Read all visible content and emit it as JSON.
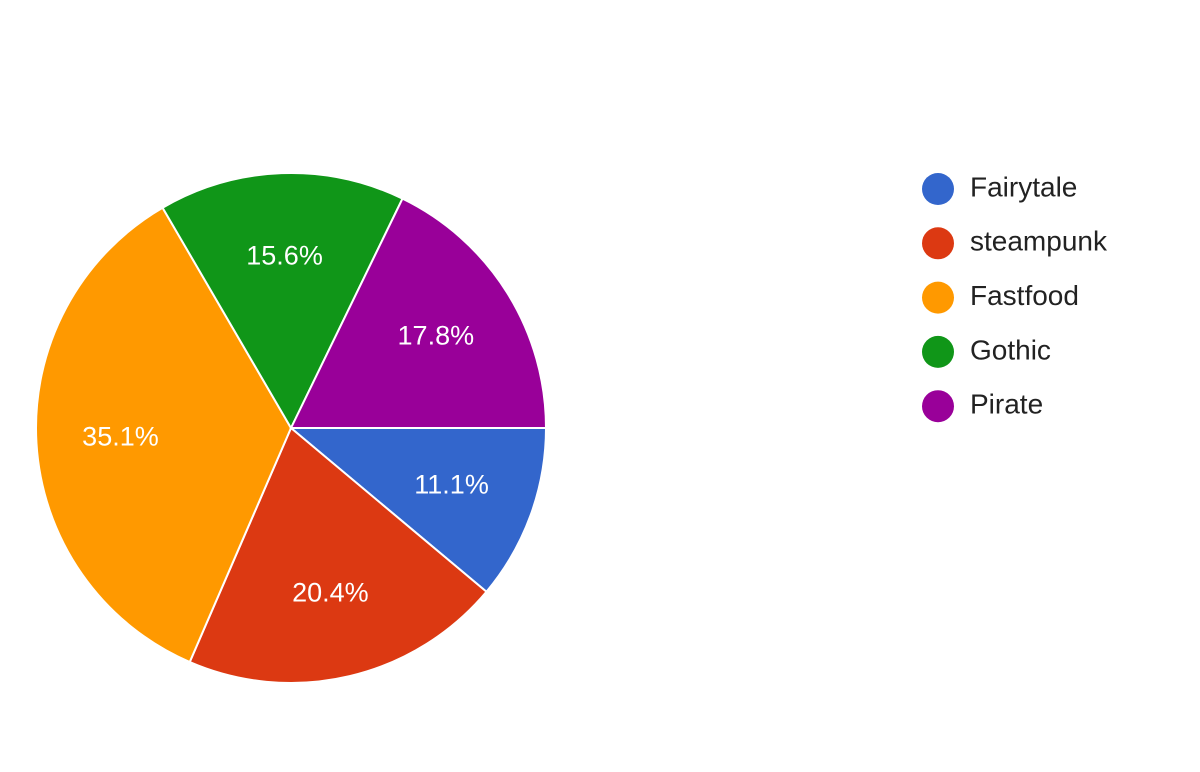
{
  "chart_data": {
    "type": "pie",
    "categories": [
      "Fairytale",
      "steampunk",
      "Fastfood",
      "Gothic",
      "Pirate"
    ],
    "values": [
      11.1,
      20.4,
      35.1,
      15.6,
      17.8
    ],
    "value_labels": [
      "11.1%",
      "20.4%",
      "35.1%",
      "15.6%",
      "17.8%"
    ],
    "colors": [
      "#3366cc",
      "#dc3912",
      "#ff9900",
      "#109618",
      "#990099"
    ],
    "legend": "right"
  }
}
